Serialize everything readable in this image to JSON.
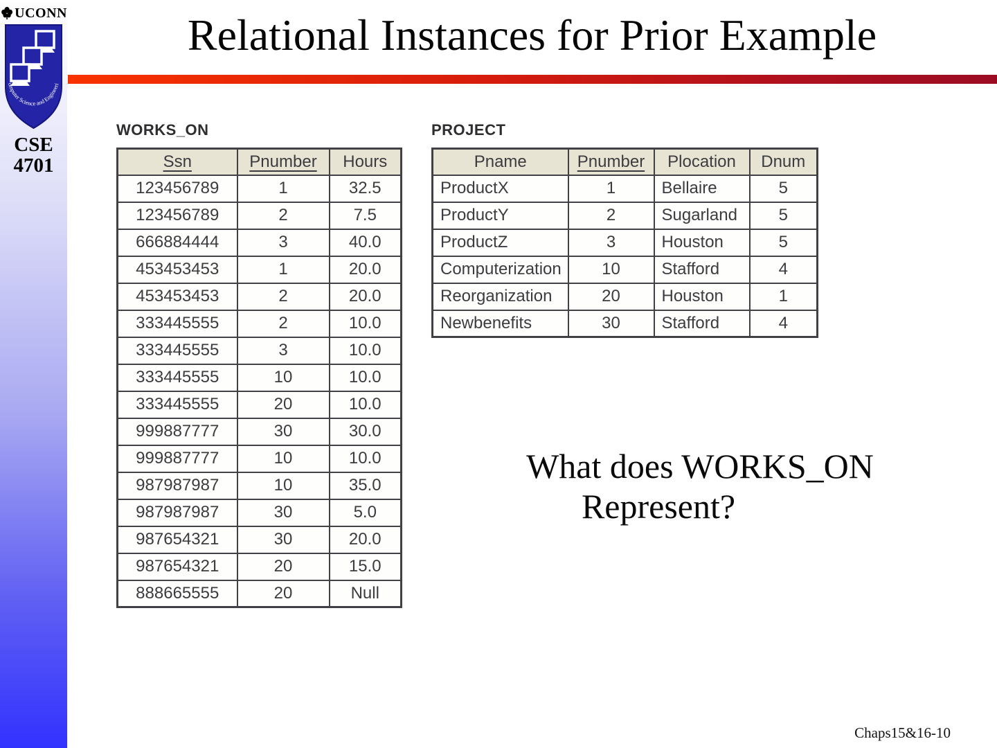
{
  "sidebar": {
    "uconn_label": "UCONN",
    "shield_text": "Computer Science and Engineering",
    "course_line1": "CSE",
    "course_line2": "4701",
    "colors": {
      "shield_blue": "#2424a6",
      "gradient_bottom": "#3232ff",
      "gradient_top": "#ffffff"
    }
  },
  "header": {
    "title": "Relational Instances for Prior Example",
    "rule_color_left": "#f83300",
    "rule_color_right": "#9b0c23"
  },
  "tables": {
    "works_on": {
      "label": "WORKS_ON",
      "columns": [
        {
          "label": "Ssn",
          "key": true
        },
        {
          "label": "Pnumber",
          "key": true
        },
        {
          "label": "Hours",
          "key": false
        }
      ],
      "rows": [
        [
          "123456789",
          "1",
          "32.5"
        ],
        [
          "123456789",
          "2",
          "7.5"
        ],
        [
          "666884444",
          "3",
          "40.0"
        ],
        [
          "453453453",
          "1",
          "20.0"
        ],
        [
          "453453453",
          "2",
          "20.0"
        ],
        [
          "333445555",
          "2",
          "10.0"
        ],
        [
          "333445555",
          "3",
          "10.0"
        ],
        [
          "333445555",
          "10",
          "10.0"
        ],
        [
          "333445555",
          "20",
          "10.0"
        ],
        [
          "999887777",
          "30",
          "30.0"
        ],
        [
          "999887777",
          "10",
          "10.0"
        ],
        [
          "987987987",
          "10",
          "35.0"
        ],
        [
          "987987987",
          "30",
          "5.0"
        ],
        [
          "987654321",
          "30",
          "20.0"
        ],
        [
          "987654321",
          "20",
          "15.0"
        ],
        [
          "888665555",
          "20",
          "Null"
        ]
      ]
    },
    "project": {
      "label": "PROJECT",
      "columns": [
        {
          "label": "Pname",
          "key": false
        },
        {
          "label": "Pnumber",
          "key": true
        },
        {
          "label": "Plocation",
          "key": false
        },
        {
          "label": "Dnum",
          "key": false
        }
      ],
      "rows": [
        [
          "ProductX",
          "1",
          "Bellaire",
          "5"
        ],
        [
          "ProductY",
          "2",
          "Sugarland",
          "5"
        ],
        [
          "ProductZ",
          "3",
          "Houston",
          "5"
        ],
        [
          "Computerization",
          "10",
          "Stafford",
          "4"
        ],
        [
          "Reorganization",
          "20",
          "Houston",
          "1"
        ],
        [
          "Newbenefits",
          "30",
          "Stafford",
          "4"
        ]
      ]
    }
  },
  "question": {
    "line1": "What does WORKS_ON",
    "line2": "Represent?"
  },
  "footer": {
    "page_label": "Chaps15&16-10"
  },
  "style_colors": {
    "table_header_bg": "#e8e4d4",
    "table_border": "#414145",
    "cell_text": "#3c3c40"
  }
}
